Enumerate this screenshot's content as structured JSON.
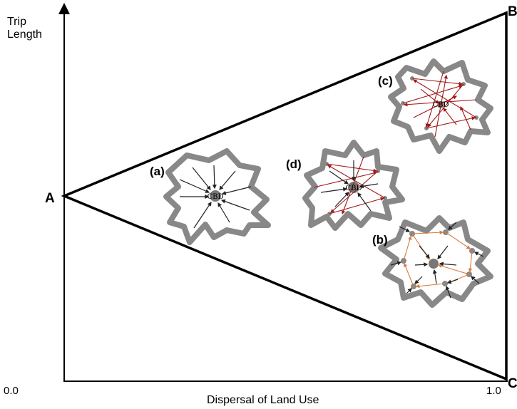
{
  "axes": {
    "y_label_line1": "Trip",
    "y_label_line2": "Length",
    "x_label": "Dispersal of Land Use",
    "x_tick_min": "0.0",
    "x_tick_max": "1.0"
  },
  "vertices": {
    "a": "A",
    "b": "B",
    "c": "C"
  },
  "cities": {
    "a": {
      "label": "(a)",
      "center_label": "CBD"
    },
    "b": {
      "label": "(b)"
    },
    "c": {
      "label": "(c)",
      "center_label": "CBD"
    },
    "d": {
      "label": "(d)",
      "center_label": "CBD"
    }
  },
  "colors": {
    "boundary": "#888888",
    "dark_arrow": "#222222",
    "red_arrow": "#a01818",
    "orange_arrow": "#d87a3a",
    "node": "#777777"
  }
}
